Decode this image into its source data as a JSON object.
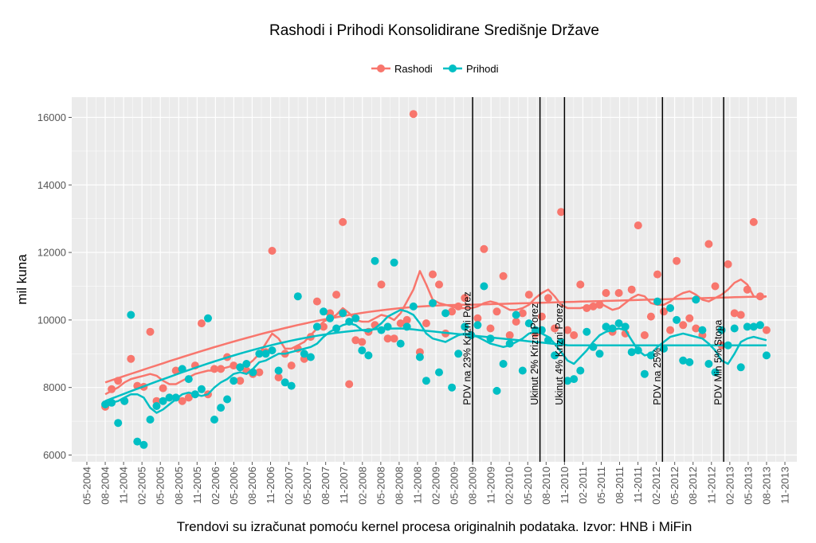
{
  "chart_data": {
    "type": "scatter",
    "title": "Rashodi i Prihodi Konsolidirane Središnje Države",
    "xlabel": "Trendovi su izračunat pomoću kernel procesa originalnih podataka. Izvor: HNB i MiFin",
    "ylabel": "mil kuna",
    "ylim": [
      5800,
      16600
    ],
    "yticks": [
      6000,
      8000,
      10000,
      12000,
      14000,
      16000
    ],
    "xticks": [
      "05-2004",
      "08-2004",
      "11-2004",
      "02-2005",
      "05-2005",
      "08-2005",
      "11-2005",
      "02-2006",
      "05-2006",
      "08-2006",
      "11-2006",
      "02-2007",
      "05-2007",
      "08-2007",
      "11-2007",
      "02-2008",
      "05-2008",
      "08-2008",
      "11-2008",
      "02-2009",
      "05-2009",
      "08-2009",
      "11-2009",
      "02-2010",
      "05-2010",
      "08-2010",
      "11-2010",
      "02-2011",
      "05-2011",
      "08-2011",
      "11-2011",
      "02-2012",
      "05-2012",
      "08-2012",
      "11-2012",
      "02-2013",
      "05-2013",
      "08-2013",
      "11-2013"
    ],
    "legend_position": "top",
    "colors": {
      "Rashodi": "#F8766D",
      "Prihodi": "#00BFC4",
      "panel": "#EBEBEB",
      "grid": "#FFFFFF",
      "vline": "#000000"
    },
    "series": [
      {
        "name": "Rashodi",
        "points": [
          7430,
          7950,
          8200,
          7600,
          8850,
          8050,
          8020,
          9650,
          7600,
          7980,
          7700,
          8500,
          7600,
          7700,
          8650,
          9900,
          7800,
          8550,
          8550,
          8900,
          8650,
          8200,
          8500,
          8400,
          8450,
          9050,
          12050,
          8300,
          9000,
          8650,
          9150,
          8850,
          9500,
          10550,
          9800,
          10200,
          10750,
          12900,
          8100,
          9400,
          9350,
          9650,
          9850,
          11050,
          9450,
          9450,
          9900,
          10000,
          16100,
          9050,
          9900,
          11350,
          11050,
          9600,
          10250,
          10400,
          10650,
          9550,
          10050,
          12100,
          9750,
          10250,
          11300,
          9550,
          9950,
          10200,
          10750,
          9600,
          10100,
          10650,
          9750,
          13200,
          9700,
          9550,
          11050,
          10350,
          10400,
          10450,
          10800,
          9650,
          10800,
          9600,
          10900,
          12800,
          9550,
          10100,
          11350,
          10250,
          9700,
          11750,
          9850,
          10050,
          9750,
          9550,
          12250,
          11000,
          9250,
          11650,
          10200,
          10150,
          10900,
          12900,
          10700,
          9700
        ],
        "smooth": [
          7800,
          7900,
          8000,
          8150,
          8250,
          8300,
          8350,
          8400,
          8350,
          8200,
          8100,
          8100,
          8200,
          8300,
          8400,
          8450,
          8500,
          8500,
          8550,
          8600,
          8650,
          8600,
          8650,
          8800,
          9000,
          9300,
          9600,
          9450,
          9150,
          9150,
          9250,
          9350,
          9550,
          9750,
          9950,
          10050,
          10150,
          10350,
          10200,
          10000,
          9950,
          9950,
          10050,
          10150,
          10100,
          10000,
          10200,
          10550,
          10900,
          11450,
          11050,
          10600,
          10500,
          10450,
          10400,
          10350,
          10350,
          10350,
          10400,
          10500,
          10550,
          10500,
          10400,
          10300,
          10300,
          10350,
          10450,
          10650,
          10800,
          10900,
          10700,
          10450,
          10350,
          10350,
          10350,
          10400,
          10450,
          10500,
          10400,
          10300,
          10350,
          10500,
          10650,
          10750,
          10700,
          10500,
          10450,
          10450,
          10550,
          10700,
          10800,
          10850,
          10750,
          10600,
          10550,
          10650,
          10750,
          10900,
          11100,
          11200,
          11050,
          10700,
          10650,
          10700
        ],
        "trend": [
          [
            8150,
            0
          ],
          [
            10700,
            1
          ]
        ]
      },
      {
        "name": "Prihodi",
        "points": [
          7500,
          7550,
          6950,
          7600,
          10150,
          6400,
          6300,
          7050,
          7450,
          7600,
          7700,
          7700,
          8550,
          8250,
          7800,
          7950,
          10050,
          7050,
          7400,
          7650,
          8200,
          8600,
          8700,
          8450,
          9000,
          9000,
          9100,
          8500,
          8150,
          8050,
          10700,
          9000,
          8900,
          9800,
          10250,
          10050,
          9750,
          10200,
          9950,
          10050,
          9100,
          8950,
          11750,
          9700,
          9800,
          11700,
          9300,
          9800,
          10400,
          8900,
          8200,
          10500,
          8450,
          10200,
          8000,
          9000,
          9800,
          9550,
          9850,
          11000,
          9450,
          7900,
          8700,
          9300,
          10150,
          8500,
          9900,
          9700,
          9700,
          9400,
          8950,
          9350,
          8200,
          8250,
          8500,
          9650,
          9200,
          9000,
          9800,
          9750,
          9900,
          9800,
          9050,
          9100,
          8400,
          8950,
          10550,
          9150,
          10350,
          10000,
          8800,
          8750,
          10600,
          9700,
          8700,
          8450,
          9700,
          9250,
          9750,
          8600,
          9800,
          9800,
          9850,
          8950
        ],
        "smooth": [
          7500,
          7550,
          7600,
          7700,
          7800,
          7800,
          7700,
          7400,
          7250,
          7350,
          7500,
          7650,
          7800,
          7850,
          7800,
          7750,
          7800,
          8000,
          8150,
          8250,
          8400,
          8450,
          8400,
          8550,
          8750,
          8800,
          8900,
          9000,
          9000,
          9050,
          9100,
          9150,
          9200,
          9300,
          9500,
          9650,
          9750,
          9850,
          9900,
          9850,
          9700,
          9650,
          9750,
          9900,
          10100,
          10200,
          10300,
          10250,
          10150,
          9900,
          9600,
          9450,
          9400,
          9350,
          9450,
          9550,
          9600,
          9550,
          9500,
          9400,
          9300,
          9250,
          9200,
          9250,
          9350,
          9450,
          9600,
          9650,
          9600,
          9500,
          9300,
          9050,
          8800,
          8700,
          8900,
          9100,
          9350,
          9550,
          9650,
          9700,
          9750,
          9700,
          9400,
          9100,
          8950,
          9000,
          9200,
          9350,
          9500,
          9550,
          9600,
          9550,
          9500,
          9450,
          9300,
          9100,
          8800,
          8700,
          9000,
          9350,
          9450,
          9500,
          9450,
          9400
        ],
        "trend": [
          [
            7600,
            0
          ],
          [
            9200,
            1
          ]
        ]
      }
    ],
    "vlines": [
      {
        "date": "08-2009",
        "label": "PDV na 23% Krizni Porez"
      },
      {
        "date": "07-2010",
        "label": "Ukinut 2% Krizni Porez"
      },
      {
        "date": "11-2010",
        "label": "Ukinut 4% Krizni Porez"
      },
      {
        "date": "03-2012",
        "label": "PDV na 25%"
      },
      {
        "date": "01-2013",
        "label": "PDV Min 5% Stopa"
      }
    ]
  }
}
